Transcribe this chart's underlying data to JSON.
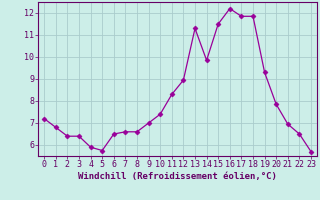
{
  "x": [
    0,
    1,
    2,
    3,
    4,
    5,
    6,
    7,
    8,
    9,
    10,
    11,
    12,
    13,
    14,
    15,
    16,
    17,
    18,
    19,
    20,
    21,
    22,
    23
  ],
  "y": [
    7.2,
    6.8,
    6.4,
    6.4,
    5.9,
    5.75,
    6.5,
    6.6,
    6.6,
    7.0,
    7.4,
    8.3,
    8.95,
    11.3,
    9.85,
    11.5,
    12.2,
    11.85,
    11.85,
    9.3,
    7.85,
    6.95,
    6.5,
    5.7
  ],
  "line_color": "#990099",
  "marker": "D",
  "marker_size": 2.5,
  "bg_color": "#cceee8",
  "grid_color": "#aacccc",
  "axis_color": "#660066",
  "xlabel": "Windchill (Refroidissement éolien,°C)",
  "xlim": [
    -0.5,
    23.5
  ],
  "ylim": [
    5.5,
    12.5
  ],
  "yticks": [
    6,
    7,
    8,
    9,
    10,
    11,
    12
  ],
  "xticks": [
    0,
    1,
    2,
    3,
    4,
    5,
    6,
    7,
    8,
    9,
    10,
    11,
    12,
    13,
    14,
    15,
    16,
    17,
    18,
    19,
    20,
    21,
    22,
    23
  ],
  "xlabel_fontsize": 6.5,
  "tick_fontsize": 6.0
}
